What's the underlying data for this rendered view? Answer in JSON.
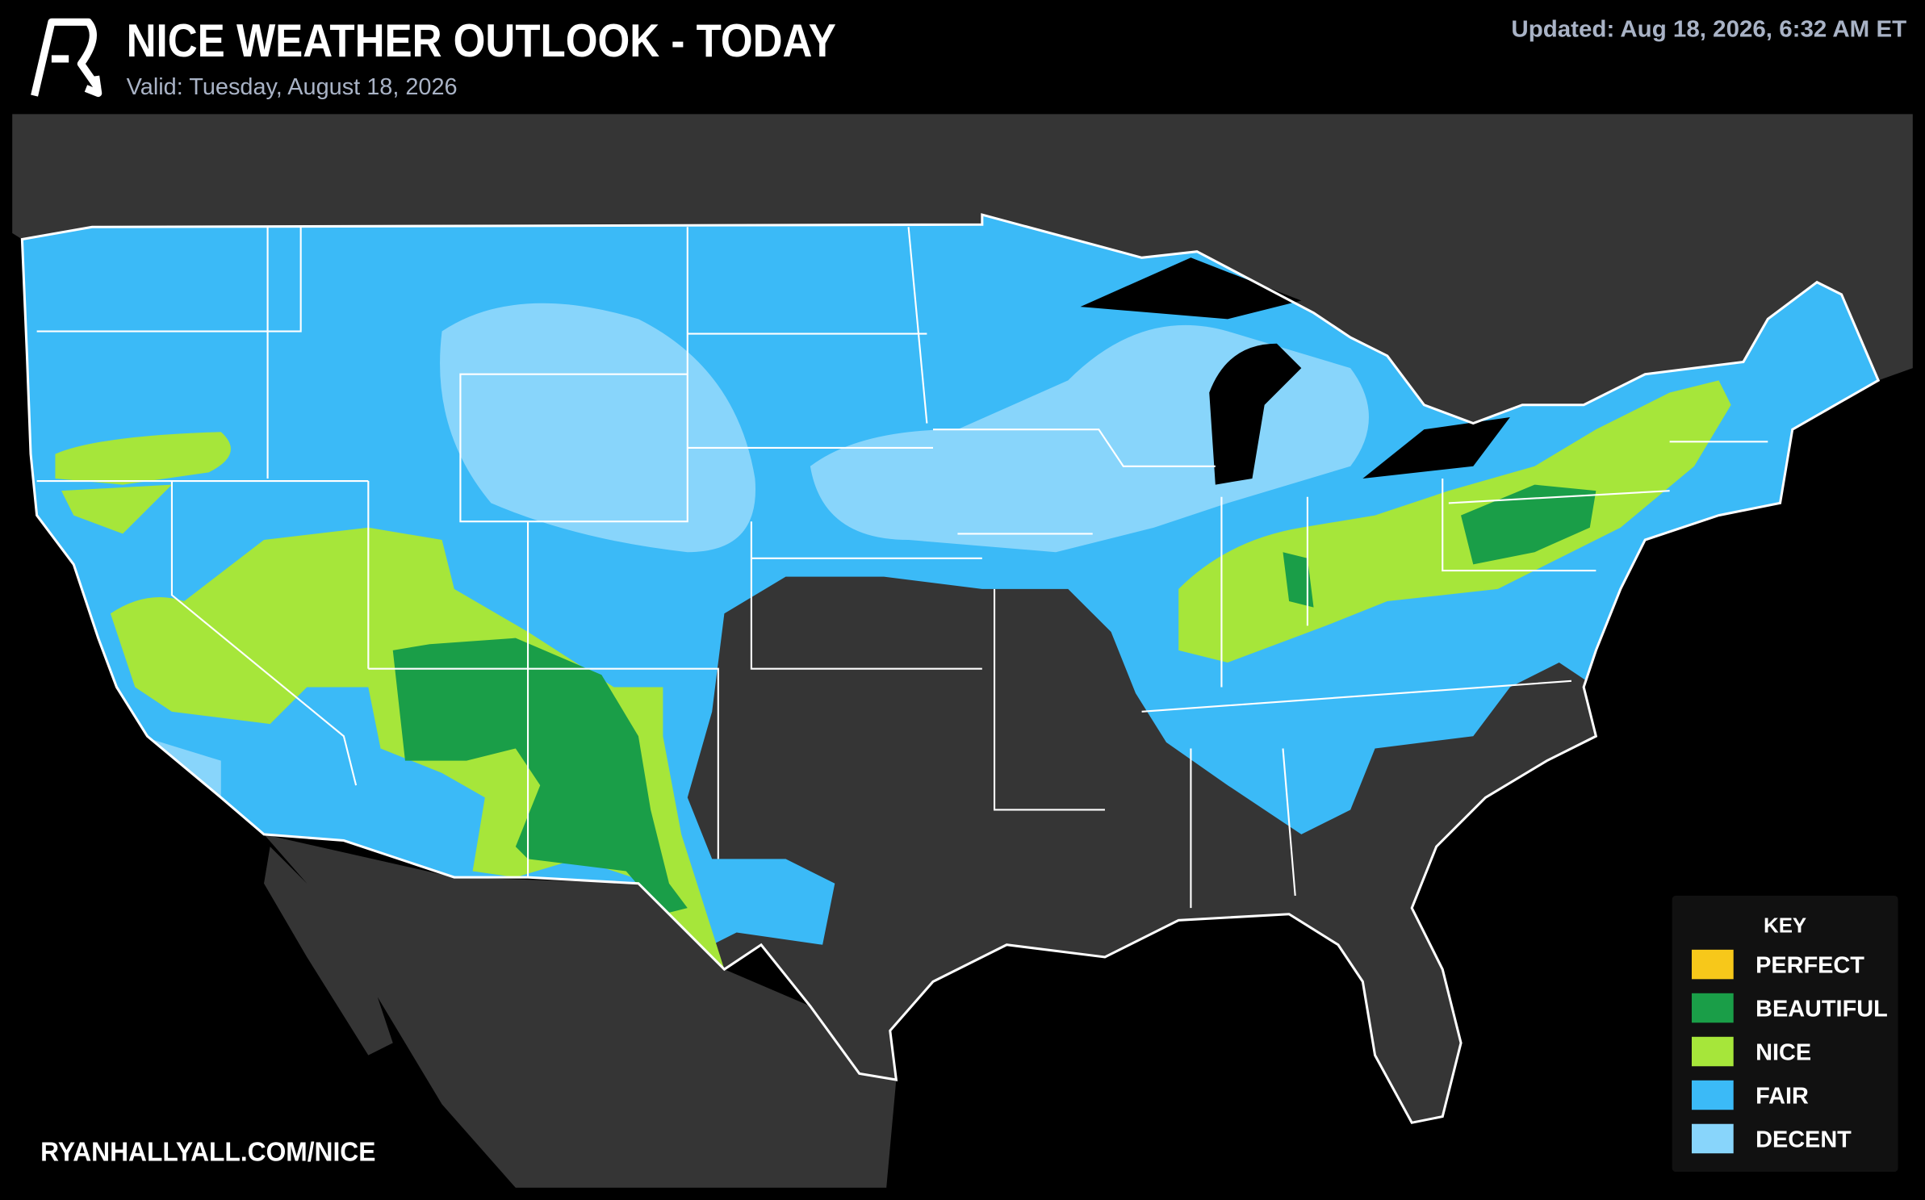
{
  "header": {
    "title": "NICE WEATHER OUTLOOK - TODAY",
    "subtitle": "Valid: Tuesday, August 18, 2026",
    "updated": "Updated: Aug 18, 2026, 6:32 AM ET"
  },
  "legend": {
    "title": "KEY",
    "items": [
      {
        "label": "PERFECT",
        "color": "#f7c81a"
      },
      {
        "label": "BEAUTIFUL",
        "color": "#1a9e48"
      },
      {
        "label": "NICE",
        "color": "#a6e63a"
      },
      {
        "label": "FAIR",
        "color": "#3bbaf7"
      },
      {
        "label": "DECENT",
        "color": "#88d5fb"
      }
    ]
  },
  "footer": {
    "url": "RYANHALLYALL.COM/NICE"
  }
}
